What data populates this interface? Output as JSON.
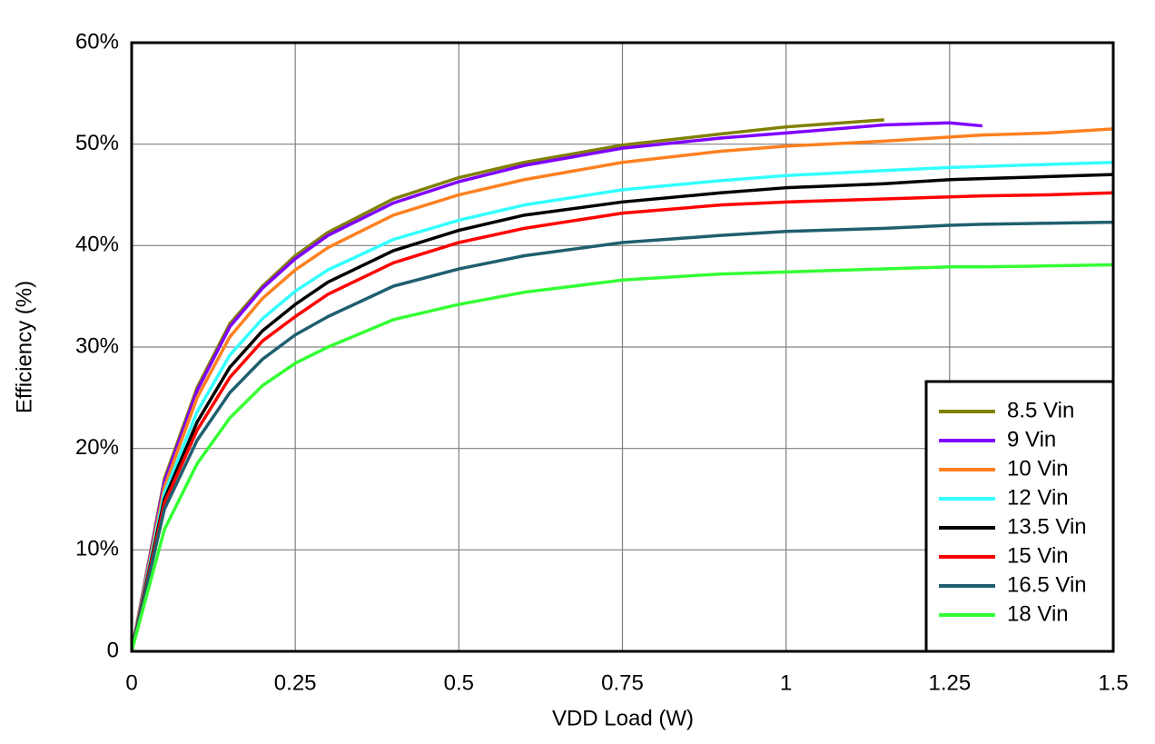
{
  "chart_data": {
    "type": "line",
    "x_label": "VDD Load (W)",
    "y_label": "Efficiency (%)",
    "x": [
      0,
      0.05,
      0.1,
      0.15,
      0.2,
      0.25,
      0.3,
      0.4,
      0.5,
      0.6,
      0.75,
      0.9,
      1,
      1.15,
      1.25,
      1.3,
      1.4,
      1.5
    ],
    "series": [
      {
        "name": "8.5 Vin",
        "color": "#808000",
        "values": [
          0,
          17,
          26,
          32.3,
          36,
          39,
          41.3,
          44.6,
          46.7,
          48.2,
          49.9,
          51,
          51.7,
          52.4,
          null,
          null,
          null,
          null
        ]
      },
      {
        "name": "9 Vin",
        "color": "#8000ff",
        "values": [
          0,
          16.7,
          25.7,
          32,
          35.8,
          38.7,
          41,
          44.2,
          46.3,
          47.9,
          49.6,
          50.6,
          51.1,
          51.9,
          52.1,
          51.8,
          null,
          null
        ]
      },
      {
        "name": "10 Vin",
        "color": "#ff8020",
        "values": [
          0,
          16.2,
          25,
          31,
          34.8,
          37.6,
          39.8,
          43,
          45,
          46.5,
          48.2,
          49.3,
          49.8,
          50.3,
          50.7,
          50.9,
          51.1,
          51.5
        ]
      },
      {
        "name": "12 Vin",
        "color": "#33ffff",
        "values": [
          0,
          15.6,
          23.6,
          29.2,
          32.8,
          35.5,
          37.6,
          40.6,
          42.5,
          44,
          45.5,
          46.4,
          46.9,
          47.4,
          47.7,
          47.8,
          48,
          48.2
        ]
      },
      {
        "name": "13.5 Vin",
        "color": "#000000",
        "values": [
          0,
          15,
          22.6,
          28,
          31.6,
          34.2,
          36.4,
          39.5,
          41.5,
          43,
          44.3,
          45.2,
          45.7,
          46.1,
          46.5,
          46.6,
          46.8,
          47
        ]
      },
      {
        "name": "15 Vin",
        "color": "#ff0000",
        "values": [
          0,
          14.6,
          21.8,
          27,
          30.6,
          33,
          35.2,
          38.3,
          40.3,
          41.7,
          43.2,
          44,
          44.3,
          44.6,
          44.8,
          44.9,
          45,
          45.2
        ]
      },
      {
        "name": "16.5 Vin",
        "color": "#1f5f6f",
        "values": [
          0,
          14,
          20.8,
          25.5,
          28.8,
          31.2,
          33,
          36,
          37.7,
          39,
          40.3,
          41,
          41.4,
          41.7,
          42,
          42.1,
          42.2,
          42.3
        ]
      },
      {
        "name": "18 Vin",
        "color": "#33ff33",
        "values": [
          0,
          12,
          18.5,
          23,
          26.2,
          28.4,
          30,
          32.7,
          34.2,
          35.4,
          36.6,
          37.2,
          37.4,
          37.7,
          37.9,
          37.9,
          38,
          38.1
        ]
      }
    ],
    "xlim": [
      0,
      1.5
    ],
    "xticks": [
      0,
      0.25,
      0.5,
      0.75,
      1,
      1.25,
      1.5
    ],
    "ylim": [
      0,
      60
    ],
    "yticks": [
      0,
      {
        "value": 10,
        "label": "10%"
      },
      {
        "value": 20,
        "label": "20%"
      },
      {
        "value": 30,
        "label": "30%"
      },
      {
        "value": 40,
        "label": "40%"
      },
      {
        "value": 50,
        "label": "50%"
      },
      {
        "value": 60,
        "label": "60%"
      }
    ],
    "grid": true,
    "legend": "lower right"
  }
}
